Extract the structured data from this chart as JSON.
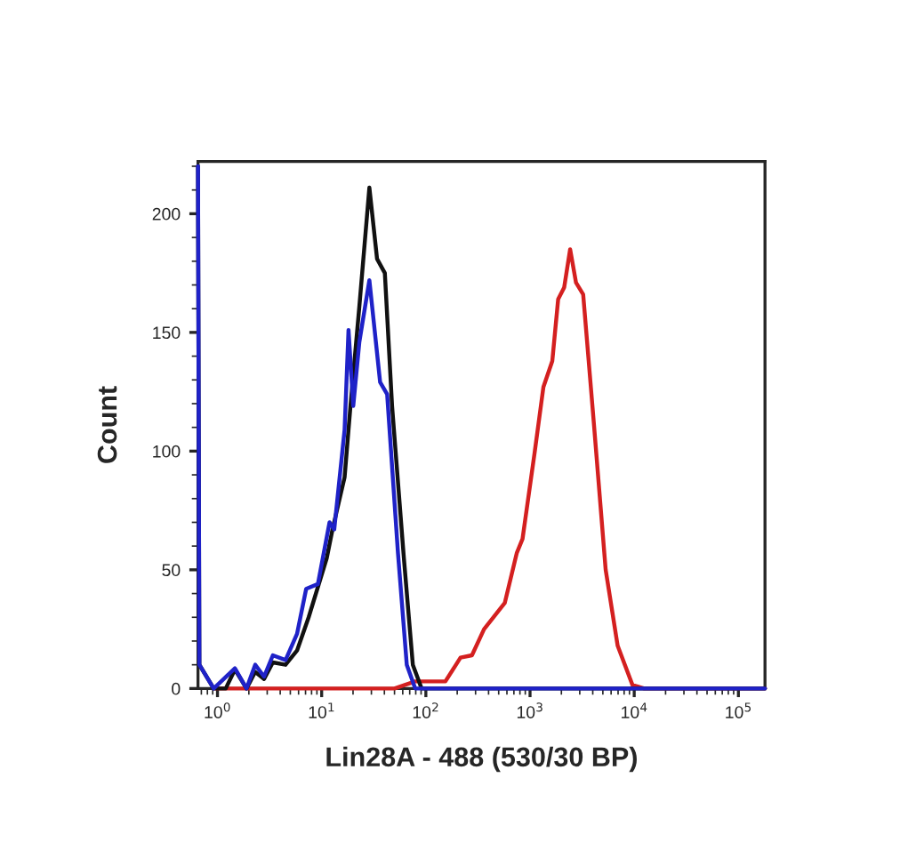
{
  "chart_data": {
    "type": "line",
    "xlabel": "Lin28A - 488 (530/30 BP)",
    "ylabel": "Count",
    "log": "x",
    "grid": false,
    "legend": false,
    "marker": "none",
    "line_style": "solid",
    "xlim": [
      0.65,
      180000
    ],
    "xticks": [
      {
        "value": 1,
        "label": "10$^{0}$"
      },
      {
        "value": 10,
        "label": "10$^{1}$"
      },
      {
        "value": 100,
        "label": "10$^{2}$"
      },
      {
        "value": 1000,
        "label": "10$^{3}$"
      },
      {
        "value": 10000,
        "label": "10$^{4}$"
      },
      {
        "value": 100000,
        "label": "10$^{5}$"
      }
    ],
    "ylim": [
      0,
      222
    ],
    "yticks": [
      0,
      50,
      100,
      150,
      200
    ],
    "series": [
      {
        "color": "#d42020",
        "x": [
          0.95,
          50,
          79,
          154,
          215,
          277,
          362,
          572,
          745,
          847,
          1104,
          1344,
          1636,
          1862,
          2128,
          2426,
          2763,
          3236,
          4093,
          5321,
          6934,
          9616,
          12500,
          180000
        ],
        "values": [
          0,
          0,
          3,
          3,
          13,
          14,
          25,
          36,
          57,
          63,
          99,
          127,
          138,
          164,
          169,
          185,
          171,
          166,
          112,
          50,
          18,
          1.5,
          0,
          0
        ]
      },
      {
        "color": "#111111",
        "x": [
          0.65,
          0.67,
          0.92,
          1.2,
          1.47,
          1.9,
          2.3,
          2.8,
          3.4,
          4.5,
          5.8,
          7.5,
          11.2,
          12.7,
          16.6,
          18.9,
          23,
          28.7,
          34,
          40.4,
          47.4,
          61.5,
          75,
          91,
          230,
          180000
        ],
        "values": [
          220,
          10,
          0,
          0,
          8,
          0,
          7,
          4,
          11,
          10,
          16,
          30,
          55,
          67,
          89,
          119,
          161,
          211,
          181,
          175,
          119,
          55,
          10,
          0,
          0,
          0
        ]
      },
      {
        "color": "#1f22c8",
        "x": [
          0.65,
          0.67,
          0.92,
          1.47,
          1.9,
          2.3,
          2.8,
          3.4,
          4.5,
          5.8,
          7.1,
          9.2,
          11.9,
          13.2,
          16.6,
          18.1,
          20.1,
          23,
          28.7,
          36.4,
          42.5,
          54,
          65.6,
          79,
          180000
        ],
        "values": [
          220,
          10,
          0,
          8.5,
          0,
          10,
          5,
          14,
          12,
          23,
          42,
          44,
          70,
          67,
          109,
          151,
          119,
          146,
          172,
          129,
          124,
          57,
          10,
          0,
          0
        ]
      }
    ]
  }
}
